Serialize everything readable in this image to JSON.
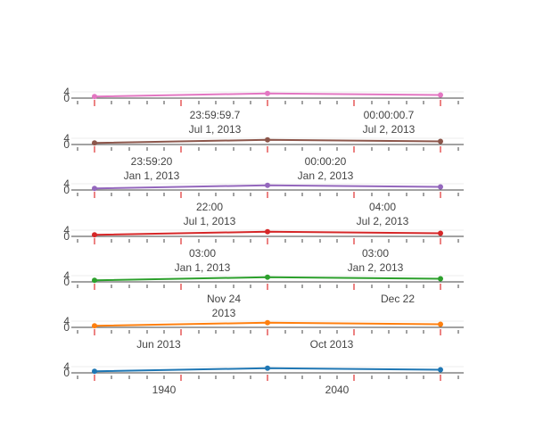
{
  "chart_data": [
    {
      "type": "line",
      "color": "#e377c2",
      "x": [
        "t1",
        "t2",
        "t3"
      ],
      "y": [
        1,
        3,
        2
      ],
      "ytick_labels": [
        "4",
        "0"
      ],
      "xtick_labels": []
    },
    {
      "type": "line",
      "color": "#8c564b",
      "x": [
        "t1",
        "t2",
        "t3"
      ],
      "y": [
        1,
        3,
        2
      ],
      "ytick_labels": [
        "4",
        "0"
      ],
      "xtick_labels": [
        {
          "line1": "23:59:59.7",
          "line2": "Jul 1, 2013"
        },
        {
          "line1": "00:00:00.7",
          "line2": "Jul 2, 2013"
        }
      ]
    },
    {
      "type": "line",
      "color": "#9467bd",
      "x": [
        "t1",
        "t2",
        "t3"
      ],
      "y": [
        1,
        3,
        2
      ],
      "ytick_labels": [
        "4",
        "0"
      ],
      "xtick_labels": [
        {
          "line1": "23:59:20",
          "line2": "Jan 1, 2013"
        },
        {
          "line1": "00:00:20",
          "line2": "Jan 2, 2013"
        }
      ]
    },
    {
      "type": "line",
      "color": "#d62728",
      "x": [
        "t1",
        "t2",
        "t3"
      ],
      "y": [
        1,
        3,
        2
      ],
      "ytick_labels": [
        "4",
        "0"
      ],
      "xtick_labels": [
        {
          "line1": "22:00",
          "line2": "Jul 1, 2013"
        },
        {
          "line1": "04:00",
          "line2": "Jul 2, 2013"
        }
      ]
    },
    {
      "type": "line",
      "color": "#2ca02c",
      "x": [
        "t1",
        "t2",
        "t3"
      ],
      "y": [
        1,
        3,
        2
      ],
      "ytick_labels": [
        "4",
        "0"
      ],
      "xtick_labels": [
        {
          "line1": "03:00",
          "line2": "Jan 1, 2013"
        },
        {
          "line1": "03:00",
          "line2": "Jan 2, 2013"
        }
      ]
    },
    {
      "type": "line",
      "color": "#ff7f0e",
      "x": [
        "t1",
        "t2",
        "t3"
      ],
      "y": [
        1,
        3,
        2
      ],
      "ytick_labels": [
        "4",
        "0"
      ],
      "xtick_labels": [
        {
          "line1": "Nov 24",
          "line2": "2013"
        },
        {
          "line1": "Dec 22",
          "line2": ""
        }
      ]
    },
    {
      "type": "line",
      "color": "#1f77b4",
      "x": [
        "t1",
        "t2",
        "t3"
      ],
      "y": [
        1,
        3,
        2
      ],
      "ytick_labels": [
        "4",
        "0"
      ],
      "xtick_labels": [
        {
          "line1": "Jun 2013",
          "line2": ""
        },
        {
          "line1": "Oct 2013",
          "line2": ""
        }
      ]
    },
    {
      "type": "axis",
      "xtick_labels": [
        {
          "line1": "1940",
          "line2": ""
        },
        {
          "line1": "2040",
          "line2": ""
        }
      ]
    }
  ]
}
